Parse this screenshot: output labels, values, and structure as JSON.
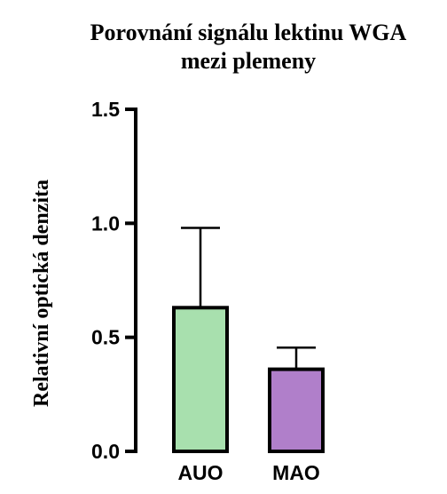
{
  "chart_data": {
    "type": "bar",
    "title_lines": [
      "Porovnání signálu lektinu WGA",
      "mezi plemeny"
    ],
    "xlabel": "",
    "ylabel": "Relativní optická denzita",
    "ylim": [
      0,
      1.5
    ],
    "yticks": [
      "0.0",
      "0.5",
      "1.0",
      "1.5"
    ],
    "categories": [
      "AUO",
      "MAO"
    ],
    "values": [
      0.63,
      0.36
    ],
    "errors": [
      0.35,
      0.095
    ],
    "colors": [
      "#a8e0ae",
      "#b07fca"
    ],
    "grid": false,
    "legend": "none"
  }
}
